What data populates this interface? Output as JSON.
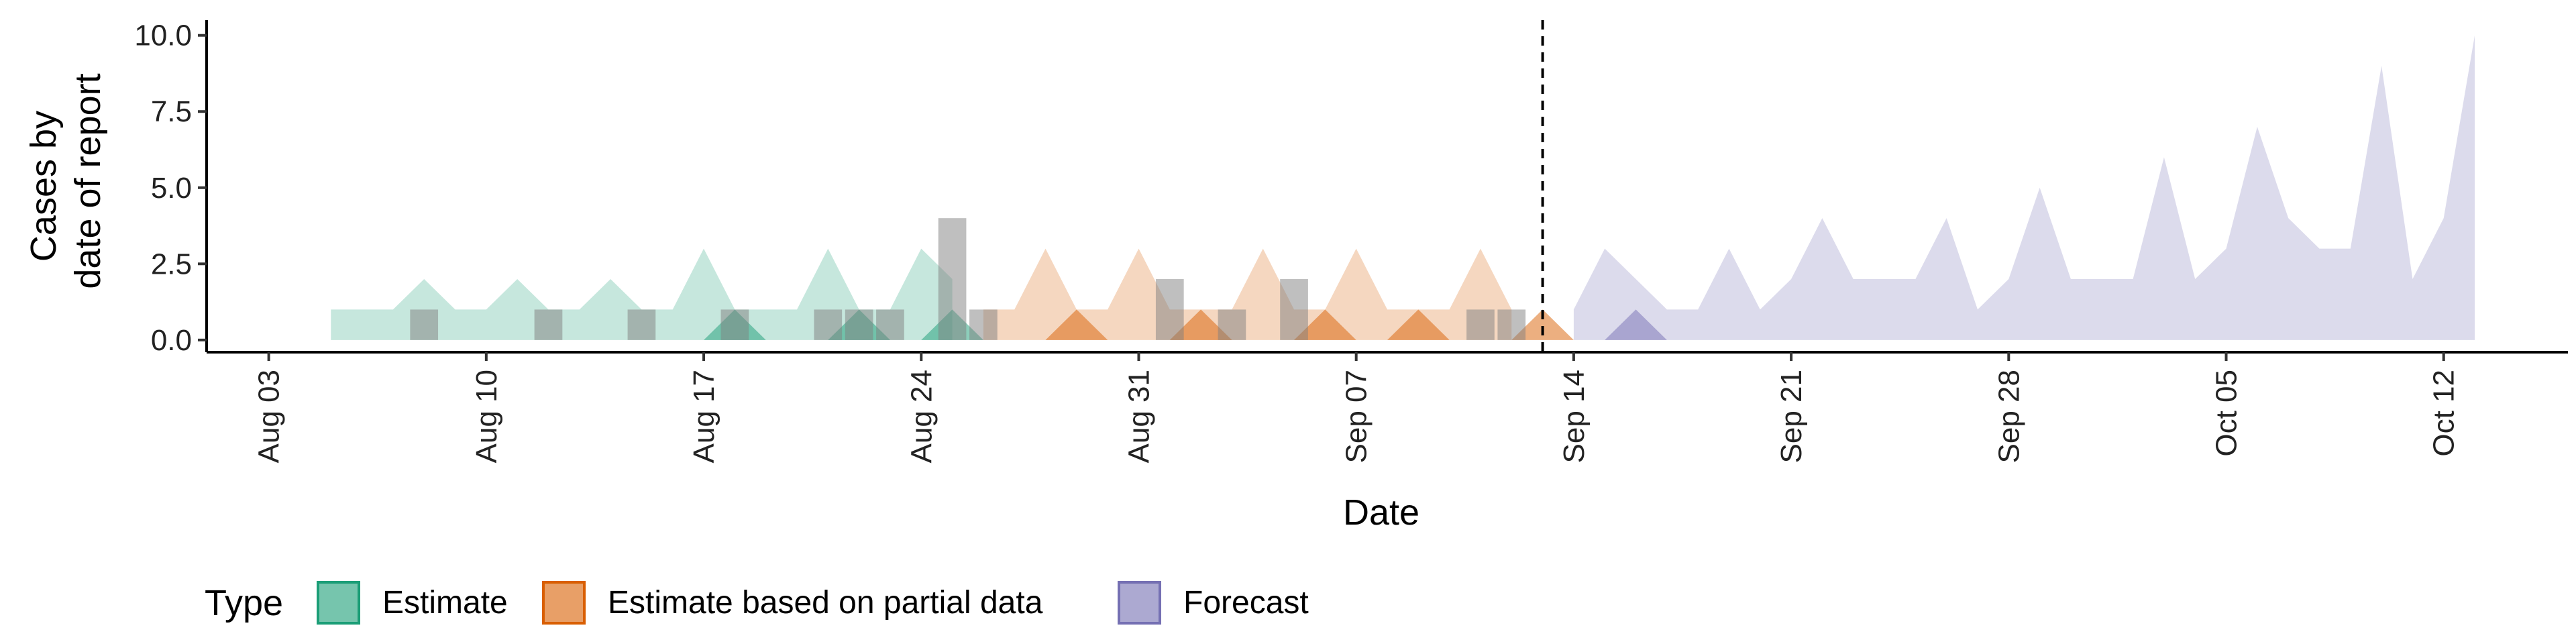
{
  "chart_data": {
    "type": "area",
    "xlabel": "Date",
    "ylabel_lines": [
      "Cases by",
      "date of report"
    ],
    "x_start": "2020-08-01",
    "x_end": "2020-10-16",
    "x_ticks": [
      {
        "date": "2020-08-03",
        "label": "Aug 03"
      },
      {
        "date": "2020-08-10",
        "label": "Aug 10"
      },
      {
        "date": "2020-08-17",
        "label": "Aug 17"
      },
      {
        "date": "2020-08-24",
        "label": "Aug 24"
      },
      {
        "date": "2020-08-31",
        "label": "Aug 31"
      },
      {
        "date": "2020-09-07",
        "label": "Sep 07"
      },
      {
        "date": "2020-09-14",
        "label": "Sep 14"
      },
      {
        "date": "2020-09-21",
        "label": "Sep 21"
      },
      {
        "date": "2020-09-28",
        "label": "Sep 28"
      },
      {
        "date": "2020-10-05",
        "label": "Oct 05"
      },
      {
        "date": "2020-10-12",
        "label": "Oct 12"
      }
    ],
    "ylim": [
      -0.4,
      10.5
    ],
    "y_ticks": [
      {
        "value": 0,
        "label": "0.0"
      },
      {
        "value": 2.5,
        "label": "2.5"
      },
      {
        "value": 5,
        "label": "5.0"
      },
      {
        "value": 7.5,
        "label": "7.5"
      },
      {
        "value": 10,
        "label": "10.0"
      }
    ],
    "vline_date": "2020-09-13",
    "colors": {
      "estimate": "#1B9E77",
      "partial": "#D95F02",
      "forecast": "#7570B3",
      "observed": "#7F7F7F"
    },
    "series": [
      {
        "key": "estimate",
        "start": "2020-08-05",
        "outer_upper": [
          1,
          1,
          1,
          2,
          1,
          1,
          2,
          1,
          1,
          2,
          1,
          1,
          3,
          1,
          1,
          1,
          3,
          1,
          1,
          3,
          2
        ],
        "inner_upper": [
          0,
          0,
          0,
          0,
          0,
          0,
          0,
          0,
          0,
          0,
          0,
          0,
          0,
          1,
          0,
          0,
          0,
          1,
          0,
          0,
          1,
          0
        ]
      },
      {
        "key": "partial",
        "start": "2020-08-26",
        "outer_upper": [
          1,
          1,
          3,
          1,
          1,
          3,
          1,
          1,
          1,
          3,
          1,
          1,
          3,
          1,
          1,
          1,
          3,
          1
        ],
        "inner_upper": [
          0,
          0,
          0,
          1,
          0,
          0,
          0,
          1,
          0,
          0,
          0,
          1,
          0,
          0,
          1,
          0,
          0,
          0,
          1,
          0
        ]
      },
      {
        "key": "forecast",
        "start": "2020-09-14",
        "outer_upper": [
          1,
          3,
          2,
          1,
          1,
          3,
          1,
          2,
          4,
          2,
          2,
          2,
          4,
          1,
          2,
          5,
          2,
          2,
          2,
          6,
          2,
          3,
          7,
          4,
          3,
          3,
          9,
          2,
          4,
          10
        ],
        "inner_upper": [
          0,
          0,
          1,
          0
        ]
      }
    ],
    "observed": [
      {
        "date": "2020-08-08",
        "value": 1
      },
      {
        "date": "2020-08-12",
        "value": 1
      },
      {
        "date": "2020-08-15",
        "value": 1
      },
      {
        "date": "2020-08-18",
        "value": 1
      },
      {
        "date": "2020-08-21",
        "value": 1
      },
      {
        "date": "2020-08-22",
        "value": 1
      },
      {
        "date": "2020-08-23",
        "value": 1
      },
      {
        "date": "2020-08-25",
        "value": 4
      },
      {
        "date": "2020-08-26",
        "value": 1
      },
      {
        "date": "2020-09-01",
        "value": 2
      },
      {
        "date": "2020-09-03",
        "value": 1
      },
      {
        "date": "2020-09-05",
        "value": 2
      },
      {
        "date": "2020-09-11",
        "value": 1
      },
      {
        "date": "2020-09-12",
        "value": 1
      }
    ],
    "legend": {
      "title": "Type",
      "entries": [
        {
          "key": "estimate",
          "label": "Estimate"
        },
        {
          "key": "partial",
          "label": "Estimate based on partial data"
        },
        {
          "key": "forecast",
          "label": "Forecast"
        }
      ]
    }
  }
}
